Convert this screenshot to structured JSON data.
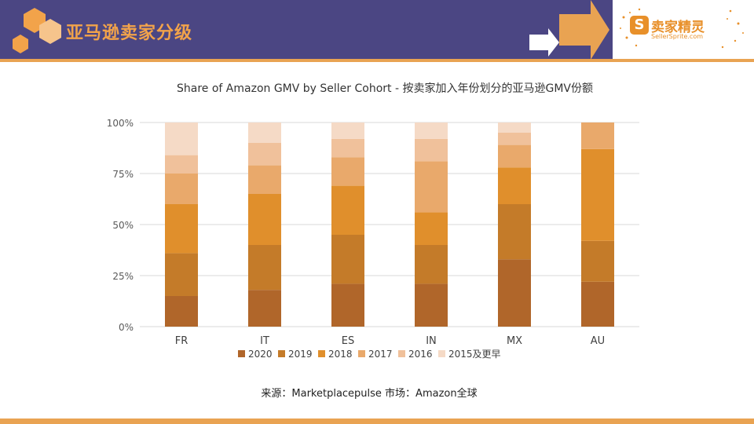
{
  "header": {
    "title": "亚马逊卖家分级",
    "logo_text": "卖家精灵",
    "logo_sub": "SellerSprite.com",
    "logo_letter": "S"
  },
  "colors": {
    "header_bg": "#4b4683",
    "accent": "#e9a352"
  },
  "chart_data": {
    "type": "bar",
    "stacked": true,
    "title": "Share of Amazon GMV by Seller Cohort - 按卖家加入年份划分的亚马逊GMV份额",
    "categories": [
      "FR",
      "IT",
      "ES",
      "IN",
      "MX",
      "AU"
    ],
    "ylim": [
      0,
      100
    ],
    "yticks": [
      "0%",
      "25%",
      "50%",
      "75%",
      "100%"
    ],
    "legend_position": "bottom",
    "grid": true,
    "series": [
      {
        "name": "2020",
        "color": "#b0662a",
        "values": [
          15,
          18,
          21,
          21,
          33,
          22
        ]
      },
      {
        "name": "2019",
        "color": "#c47b29",
        "values": [
          21,
          22,
          24,
          19,
          27,
          20
        ]
      },
      {
        "name": "2018",
        "color": "#e08f2c",
        "values": [
          24,
          25,
          24,
          16,
          18,
          45
        ]
      },
      {
        "name": "2017",
        "color": "#e9a96b",
        "values": [
          15,
          14,
          14,
          25,
          11,
          13
        ]
      },
      {
        "name": "2016",
        "color": "#f0c19b",
        "values": [
          9,
          11,
          9,
          11,
          6,
          0
        ]
      },
      {
        "name": "2015及更早",
        "color": "#f5dac6",
        "values": [
          16,
          10,
          8,
          8,
          5,
          0
        ]
      }
    ]
  },
  "footer": {
    "source": "来源：Marketplacepulse    市场：Amazon全球"
  }
}
